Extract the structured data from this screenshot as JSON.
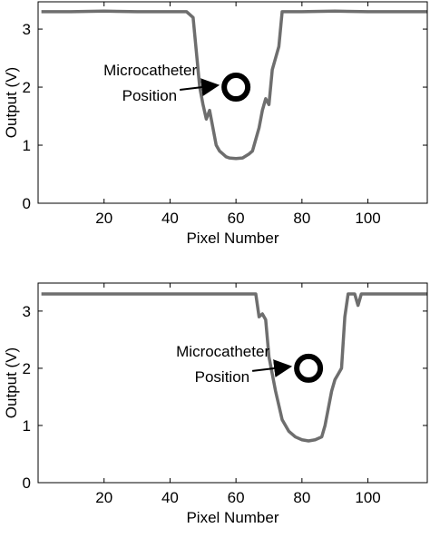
{
  "chart_data": [
    {
      "type": "line",
      "x_label": "Pixel Number",
      "y_label": "Output (V)",
      "xlim": [
        0,
        118
      ],
      "ylim": [
        0,
        3.47
      ],
      "xticks": [
        20,
        40,
        60,
        80,
        100
      ],
      "yticks": [
        0,
        1,
        2,
        3
      ],
      "series": [
        {
          "color": "#6e6e6e",
          "x": [
            1,
            10,
            20,
            30,
            40,
            45,
            46,
            47,
            48,
            49,
            50,
            51,
            52,
            53,
            54,
            55,
            56,
            57,
            58,
            60,
            62,
            64,
            65,
            66,
            67,
            68,
            69,
            70,
            71,
            72,
            73,
            74,
            80,
            90,
            100,
            110,
            118
          ],
          "values": [
            3.3,
            3.3,
            3.31,
            3.3,
            3.3,
            3.3,
            3.25,
            3.2,
            2.6,
            2.0,
            1.7,
            1.45,
            1.6,
            1.3,
            1.0,
            0.9,
            0.85,
            0.8,
            0.78,
            0.77,
            0.78,
            0.85,
            0.9,
            1.1,
            1.3,
            1.6,
            1.8,
            1.7,
            2.3,
            2.5,
            2.7,
            3.3,
            3.3,
            3.31,
            3.3,
            3.3,
            3.3
          ]
        }
      ],
      "annotation": [
        "Microcatheter",
        "Position"
      ],
      "marker": {
        "x": 60,
        "y": 2
      }
    },
    {
      "type": "line",
      "x_label": "Pixel Number",
      "y_label": "Output (V)",
      "xlim": [
        0,
        118
      ],
      "ylim": [
        0,
        3.49
      ],
      "xticks": [
        20,
        40,
        60,
        80,
        100
      ],
      "yticks": [
        0,
        1,
        2,
        3
      ],
      "series": [
        {
          "color": "#6e6e6e",
          "x": [
            1,
            10,
            20,
            30,
            40,
            50,
            60,
            66,
            67,
            68,
            69,
            70,
            71,
            72,
            73,
            74,
            76,
            78,
            80,
            82,
            84,
            86,
            87,
            88,
            89,
            90,
            91,
            92,
            93,
            94,
            96,
            97,
            98,
            100,
            110,
            118
          ],
          "values": [
            3.3,
            3.3,
            3.3,
            3.3,
            3.3,
            3.3,
            3.3,
            3.3,
            2.9,
            2.95,
            2.85,
            2.2,
            1.9,
            1.6,
            1.35,
            1.1,
            0.9,
            0.8,
            0.75,
            0.73,
            0.75,
            0.8,
            1.0,
            1.3,
            1.6,
            1.8,
            1.9,
            2.0,
            2.9,
            3.3,
            3.3,
            3.1,
            3.3,
            3.3,
            3.3,
            3.3
          ]
        }
      ],
      "annotation": [
        "Microcatheter",
        "Position"
      ],
      "marker": {
        "x": 82,
        "y": 2
      }
    }
  ]
}
